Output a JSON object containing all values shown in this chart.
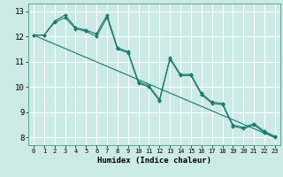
{
  "xlabel": "Humidex (Indice chaleur)",
  "bg_color": "#cceae7",
  "grid_color": "#ffffff",
  "line_color": "#1a7a6e",
  "xlim": [
    -0.5,
    23.5
  ],
  "ylim": [
    7.7,
    13.3
  ],
  "xticks": [
    0,
    1,
    2,
    3,
    4,
    5,
    6,
    7,
    8,
    9,
    10,
    11,
    12,
    13,
    14,
    15,
    16,
    17,
    18,
    19,
    20,
    21,
    22,
    23
  ],
  "yticks": [
    8,
    9,
    10,
    11,
    12,
    13
  ],
  "line1_x": [
    0,
    1,
    2,
    3,
    4,
    5,
    6,
    7,
    8,
    9,
    10,
    11,
    12,
    13,
    14,
    15,
    16,
    17,
    18,
    19,
    20,
    21,
    22,
    23
  ],
  "line1_y": [
    12.05,
    12.05,
    12.6,
    12.85,
    12.35,
    12.25,
    12.1,
    12.85,
    11.55,
    11.4,
    10.2,
    10.05,
    9.5,
    11.15,
    10.5,
    10.5,
    9.75,
    9.4,
    9.35,
    8.5,
    8.4,
    8.55,
    8.25,
    8.05
  ],
  "line2_x": [
    0,
    1,
    2,
    3,
    4,
    5,
    6,
    7,
    8,
    9,
    10,
    11,
    12,
    13,
    14,
    15,
    16,
    17,
    18,
    19,
    20,
    21,
    22,
    23
  ],
  "line2_y": [
    12.05,
    12.05,
    12.55,
    12.75,
    12.3,
    12.2,
    12.0,
    12.75,
    11.5,
    11.35,
    10.15,
    10.0,
    9.45,
    11.1,
    10.45,
    10.45,
    9.7,
    9.35,
    9.3,
    8.45,
    8.35,
    8.5,
    8.2,
    8.0
  ],
  "line3_x": [
    0,
    23
  ],
  "line3_y": [
    12.05,
    8.0
  ]
}
